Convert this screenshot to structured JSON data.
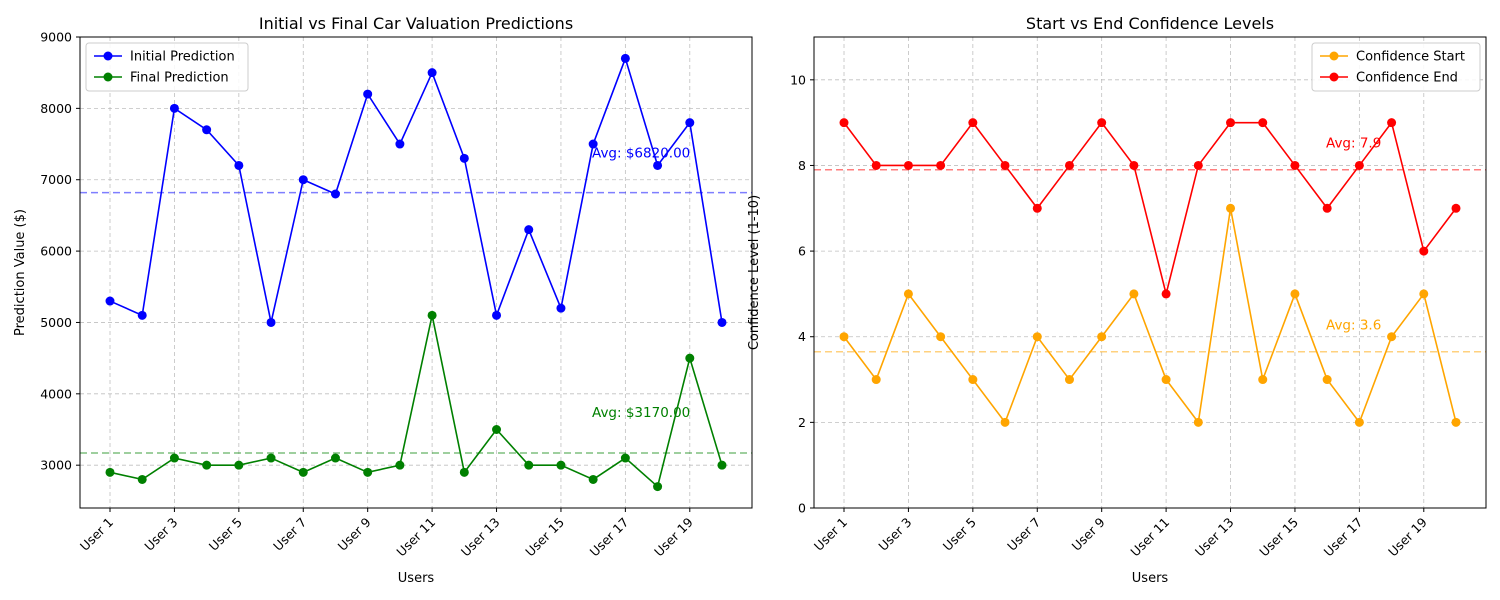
{
  "chart_data": [
    {
      "type": "line",
      "title": "Initial vs Final Car Valuation Predictions",
      "xlabel": "Users",
      "ylabel": "Prediction Value ($)",
      "ylim": [
        2400,
        9000
      ],
      "yticks": [
        3000,
        4000,
        5000,
        6000,
        7000,
        8000,
        9000
      ],
      "x": [
        "User 1",
        "User 2",
        "User 3",
        "User 4",
        "User 5",
        "User 6",
        "User 7",
        "User 8",
        "User 9",
        "User 10",
        "User 11",
        "User 12",
        "User 13",
        "User 14",
        "User 15",
        "User 16",
        "User 17",
        "User 18",
        "User 19",
        "User 20"
      ],
      "xtick_labels": [
        "User 1",
        "User 3",
        "User 5",
        "User 7",
        "User 9",
        "User 11",
        "User 13",
        "User 15",
        "User 17",
        "User 19"
      ],
      "grid": true,
      "legend_position": "upper-left",
      "series": [
        {
          "name": "Initial Prediction",
          "color": "#0000ff",
          "values": [
            5300,
            5100,
            8000,
            7700,
            7200,
            5000,
            7000,
            6800,
            8200,
            7500,
            8500,
            7300,
            5100,
            6300,
            5200,
            7500,
            8700,
            7200,
            7800,
            5000
          ],
          "avg": 6820,
          "avg_label": "Avg: $6820.00"
        },
        {
          "name": "Final Prediction",
          "color": "#008000",
          "values": [
            2900,
            2800,
            3100,
            3000,
            3000,
            3100,
            2900,
            3100,
            2900,
            3000,
            5100,
            2900,
            3500,
            3000,
            3000,
            2800,
            3100,
            2700,
            4500,
            3000
          ],
          "avg": 3170,
          "avg_label": "Avg: $3170.00"
        }
      ]
    },
    {
      "type": "line",
      "title": "Start vs End Confidence Levels",
      "xlabel": "Users",
      "ylabel": "Confidence Level (1-10)",
      "ylim": [
        0,
        11
      ],
      "yticks": [
        0,
        2,
        4,
        6,
        8,
        10
      ],
      "x": [
        "User 1",
        "User 2",
        "User 3",
        "User 4",
        "User 5",
        "User 6",
        "User 7",
        "User 8",
        "User 9",
        "User 10",
        "User 11",
        "User 12",
        "User 13",
        "User 14",
        "User 15",
        "User 16",
        "User 17",
        "User 18",
        "User 19",
        "User 20"
      ],
      "xtick_labels": [
        "User 1",
        "User 3",
        "User 5",
        "User 7",
        "User 9",
        "User 11",
        "User 13",
        "User 15",
        "User 17",
        "User 19"
      ],
      "grid": true,
      "legend_position": "upper-right",
      "series": [
        {
          "name": "Confidence Start",
          "color": "#ffa500",
          "values": [
            4,
            3,
            5,
            4,
            3,
            2,
            4,
            3,
            4,
            5,
            3,
            2,
            7,
            3,
            5,
            3,
            2,
            4,
            5,
            2
          ],
          "avg": 3.65,
          "avg_label": "Avg: 3.6"
        },
        {
          "name": "Confidence End",
          "color": "#ff0000",
          "values": [
            9,
            8,
            8,
            8,
            9,
            8,
            7,
            8,
            9,
            8,
            5,
            8,
            9,
            9,
            8,
            7,
            8,
            9,
            6,
            7
          ],
          "avg": 7.9,
          "avg_label": "Avg: 7.9"
        }
      ]
    }
  ]
}
